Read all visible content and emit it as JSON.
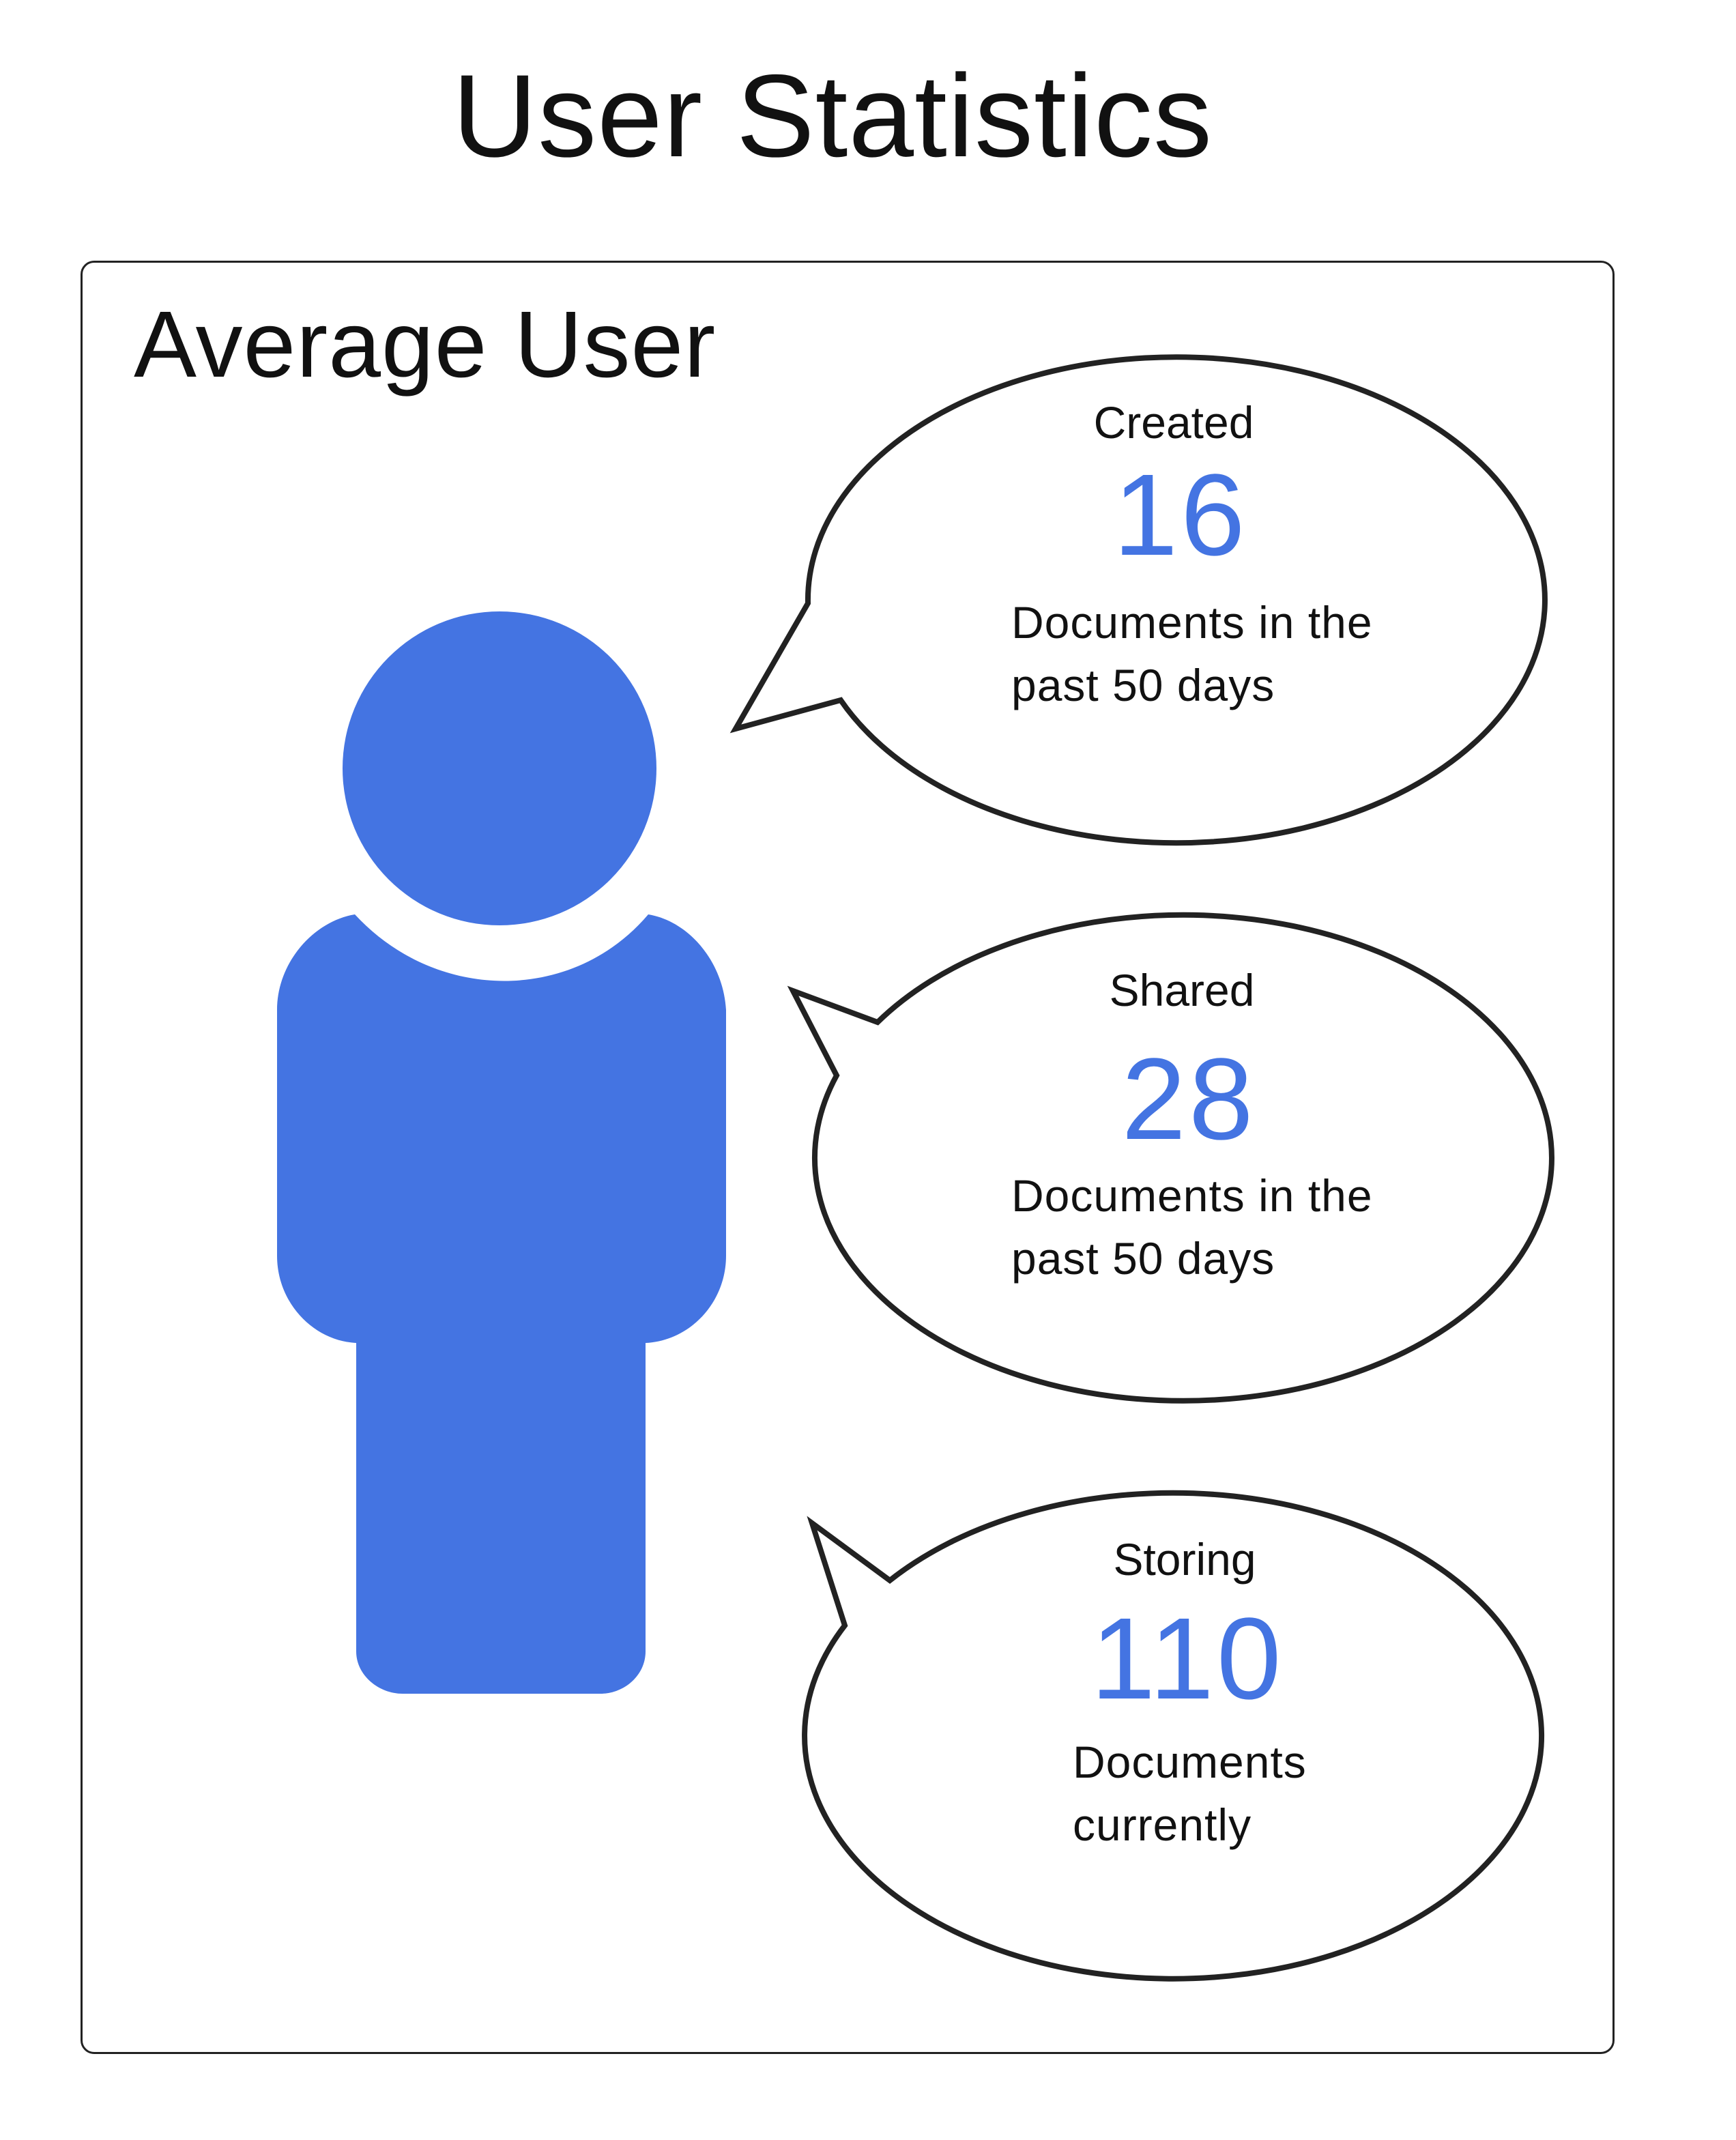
{
  "title": "User Statistics",
  "panel": {
    "title": "Average User"
  },
  "colors": {
    "accent": "#4474e2",
    "outline": "#222222",
    "text": "#111111"
  },
  "user_icon": "person-icon",
  "stats": [
    {
      "label": "Created",
      "value": "16",
      "desc_line1": "Documents in the",
      "desc_line2": "past 50 days"
    },
    {
      "label": "Shared",
      "value": "28",
      "desc_line1": "Documents in the",
      "desc_line2": "past 50 days"
    },
    {
      "label": "Storing",
      "value": "110",
      "desc_line1": "Documents",
      "desc_line2": "currently"
    }
  ]
}
